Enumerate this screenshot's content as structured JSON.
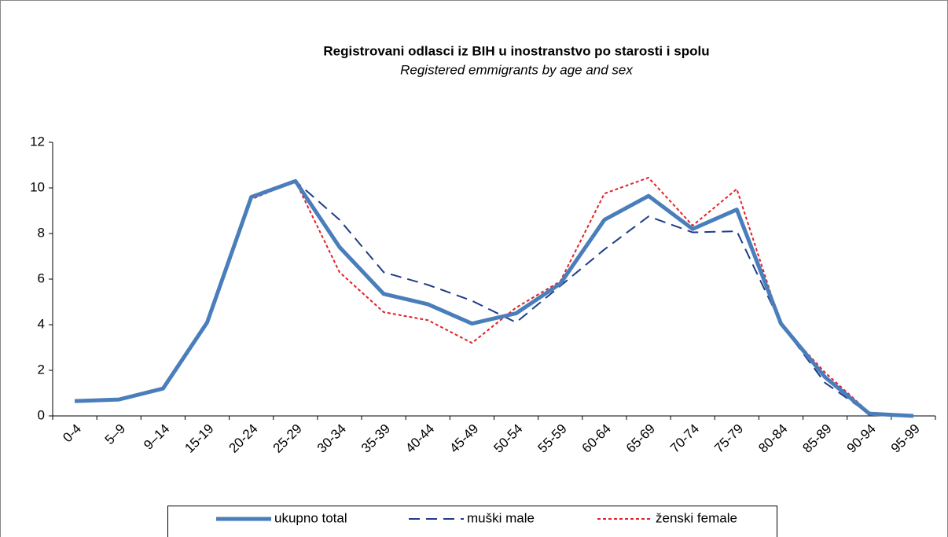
{
  "chart_data": {
    "type": "line",
    "title": "Registrovani odlasci iz BIH u inostranstvo po starosti i spolu",
    "subtitle": "Registered emmigrants by age and sex",
    "categories": [
      "0-4",
      "5–9",
      "9–14",
      "15-19",
      "20-24",
      "25-29",
      "30-34",
      "35-39",
      "40-44",
      "45-49",
      "50-54",
      "55-59",
      "60-64",
      "65-69",
      "70-74",
      "75-79",
      "80-84",
      "85-89",
      "90-94",
      "95-99"
    ],
    "series": [
      {
        "name": "ukupno total",
        "color": "#4a7ebb",
        "dash": "solid",
        "values": [
          0.65,
          0.72,
          1.2,
          4.1,
          9.6,
          10.3,
          7.4,
          5.35,
          4.9,
          4.05,
          4.5,
          5.8,
          8.6,
          9.65,
          8.2,
          9.05,
          4.05,
          1.7,
          0.1,
          0.0
        ]
      },
      {
        "name": "muški male",
        "color": "#1f3c88",
        "dash": "dashed",
        "values": [
          0.65,
          0.72,
          1.2,
          4.1,
          9.65,
          10.3,
          8.6,
          6.3,
          5.75,
          5.05,
          4.1,
          5.7,
          7.3,
          8.75,
          8.05,
          8.1,
          4.05,
          1.45,
          0.1,
          0.0
        ]
      },
      {
        "name": "ženski female",
        "color": "#e3202a",
        "dash": "dotted",
        "values": [
          0.65,
          0.68,
          1.25,
          4.15,
          9.5,
          10.3,
          6.3,
          4.55,
          4.2,
          3.2,
          4.75,
          5.9,
          9.75,
          10.45,
          8.35,
          9.95,
          4.0,
          1.9,
          0.15,
          0.0
        ]
      }
    ],
    "ylim": [
      0,
      12
    ],
    "yticks": [
      0,
      2,
      4,
      6,
      8,
      10,
      12
    ],
    "grid": false,
    "legend": "bottom"
  }
}
